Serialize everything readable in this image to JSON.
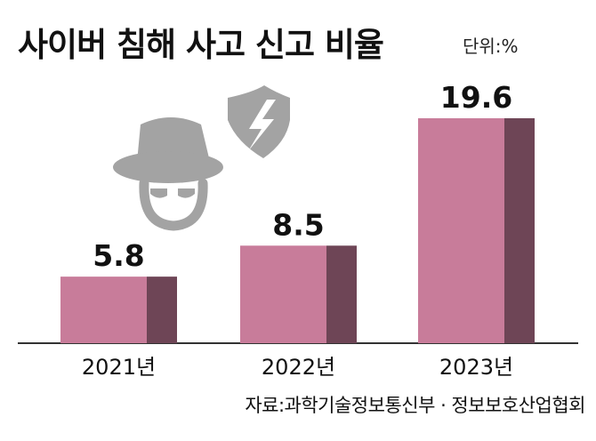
{
  "title": "사이버 침해 사고 신고 비율",
  "unit": "단위:%",
  "source": "자료:과학기술정보통신부 · 정보보호산업협회",
  "colors": {
    "bar_front": "#c87c9a",
    "bar_side": "#6e4556",
    "axis": "#333333",
    "icon": "#a3a3a3"
  },
  "icons": [
    "hacker-icon",
    "shield-lightning-icon"
  ],
  "chart_data": {
    "type": "bar",
    "categories": [
      "2021년",
      "2022년",
      "2023년"
    ],
    "values": [
      5.8,
      8.5,
      19.6
    ],
    "title": "사이버 침해 사고 신고 비율",
    "unit": "%",
    "ylim": [
      0,
      19.6
    ],
    "grid": false,
    "legend": "none"
  }
}
